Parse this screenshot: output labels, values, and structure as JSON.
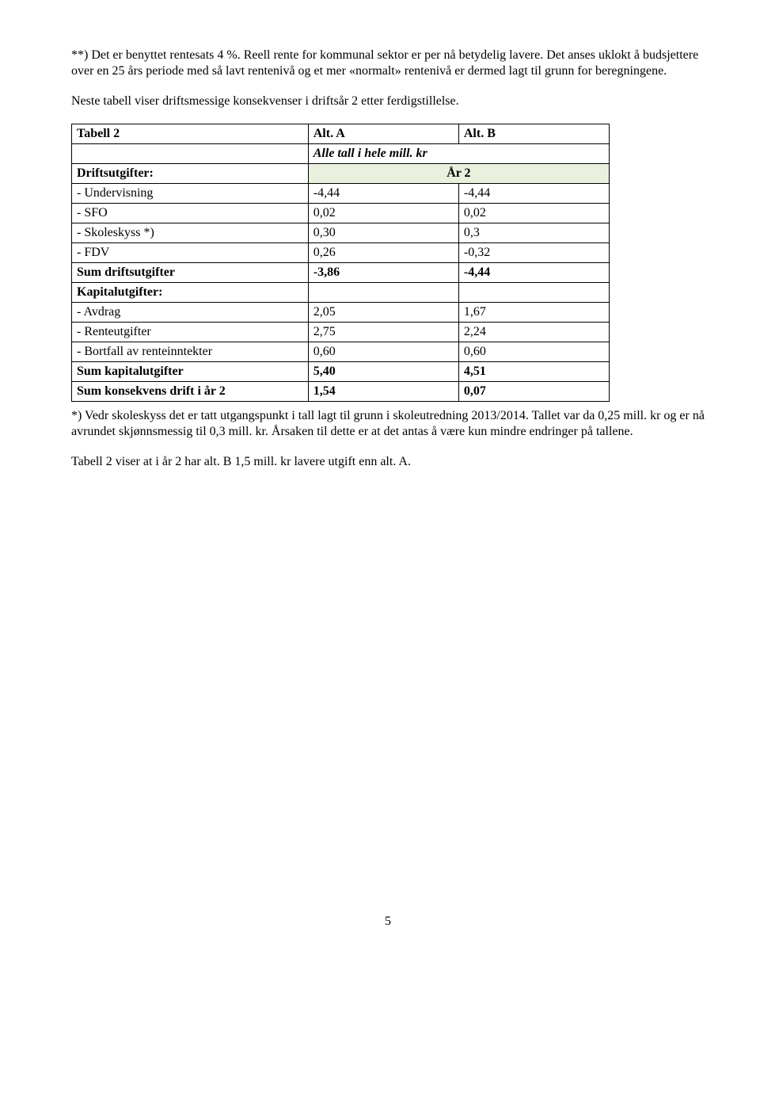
{
  "paragraphs": {
    "p1": "**) Det er benyttet rentesats 4 %. Reell rente for kommunal sektor er per nå betydelig lavere. Det anses uklokt å budsjettere over en 25 års periode med så lavt rentenivå og et mer «normalt» rentenivå er dermed lagt til grunn for beregningene.",
    "p2": "Neste tabell viser driftsmessige konsekvenser i driftsår 2 etter ferdigstillelse.",
    "p3": "*) Vedr skoleskyss det er tatt utgangspunkt i tall lagt til grunn i skoleutredning 2013/2014. Tallet var da 0,25 mill. kr og er nå avrundet skjønnsmessig til 0,3 mill. kr. Årsaken til dette er at det antas å være kun  mindre endringer på tallene.",
    "p4": "Tabell 2 viser at i år 2 har alt. B 1,5 mill. kr lavere utgift enn alt. A."
  },
  "table": {
    "title": "Tabell 2",
    "colA": "Alt. A",
    "colB": "Alt. B",
    "subheader": "Alle tall i hele mill. kr",
    "drifts_label": "Driftsutgifter:",
    "year_label": "År 2",
    "rows": [
      {
        "label": "- Undervisning",
        "a": "-4,44",
        "b": "-4,44"
      },
      {
        "label": "- SFO",
        "a": "0,02",
        "b": "0,02"
      },
      {
        "label": "- Skoleskyss *)",
        "a": "0,30",
        "b": "0,3"
      },
      {
        "label": "- FDV",
        "a": "0,26",
        "b": "-0,32"
      }
    ],
    "sum_drift": {
      "label": "Sum driftsutgifter",
      "a": "-3,86",
      "b": "-4,44"
    },
    "kapital_label": "Kapitalutgifter:",
    "kapital_rows": [
      {
        "label": "- Avdrag",
        "a": "2,05",
        "b": "1,67"
      },
      {
        "label": "- Renteutgifter",
        "a": "2,75",
        "b": "2,24"
      },
      {
        "label": "- Bortfall av renteinntekter",
        "a": "0,60",
        "b": "0,60"
      }
    ],
    "sum_kapital": {
      "label": "Sum kapitalutgifter",
      "a": "5,40",
      "b": "4,51"
    },
    "sum_total": {
      "label": "Sum konsekvens drift i år 2",
      "a": "1,54",
      "b": "0,07"
    }
  },
  "page_number": "5"
}
